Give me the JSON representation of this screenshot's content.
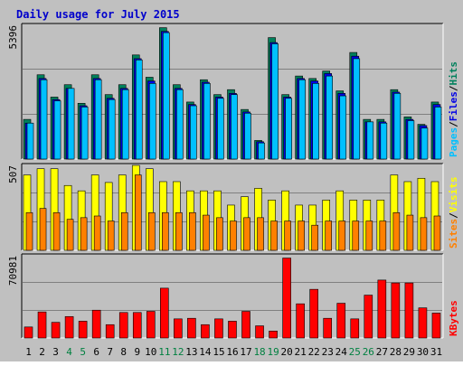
{
  "title": "Daily usage for July 2015",
  "colors": {
    "background": "#c0c0c0",
    "page_bg": "#ffffff",
    "title": "#0000cc",
    "hits_front": "#00805c",
    "hits_back": "#006b49",
    "files": "#0000e6",
    "pages": "#00c0ff",
    "visits": "#ff8000",
    "sites": "#ffff00",
    "kbytes": "#ff0000",
    "weekend_day": "#008040",
    "weekday": "#000000",
    "grid": "#808080"
  },
  "chart_data": [
    {
      "type": "bar",
      "name": "hits-files-pages",
      "ylim": [
        0,
        5396
      ],
      "max_label": "5396",
      "legend": [
        "Pages",
        "Files",
        "Hits"
      ],
      "categories": [
        "1",
        "2",
        "3",
        "4",
        "5",
        "6",
        "7",
        "8",
        "9",
        "10",
        "11",
        "12",
        "13",
        "14",
        "15",
        "16",
        "17",
        "18",
        "19",
        "20",
        "21",
        "22",
        "23",
        "24",
        "25",
        "26",
        "27",
        "28",
        "29",
        "30",
        "31"
      ],
      "series": [
        {
          "name": "Hits",
          "values": [
            1600,
            3400,
            2500,
            3000,
            2250,
            3400,
            2600,
            3000,
            4200,
            3300,
            5300,
            3000,
            2300,
            3200,
            2600,
            2800,
            2000,
            750,
            4900,
            2600,
            3350,
            3250,
            3550,
            2750,
            4300,
            1600,
            1600,
            2800,
            1700,
            1400,
            2300
          ]
        },
        {
          "name": "Files",
          "values": [
            1450,
            3250,
            2400,
            2850,
            2150,
            3250,
            2450,
            2850,
            4050,
            3150,
            5150,
            2850,
            2200,
            3100,
            2500,
            2650,
            1900,
            700,
            4700,
            2500,
            3250,
            3150,
            3450,
            2650,
            4150,
            1500,
            1500,
            2700,
            1600,
            1350,
            2200
          ]
        },
        {
          "name": "Pages",
          "values": [
            1450,
            3200,
            2350,
            2850,
            2100,
            3200,
            2400,
            2800,
            4000,
            3050,
            5100,
            2800,
            2150,
            3050,
            2450,
            2600,
            1850,
            650,
            4650,
            2450,
            3200,
            3050,
            3350,
            2550,
            4050,
            1500,
            1450,
            2650,
            1550,
            1250,
            2100
          ]
        }
      ]
    },
    {
      "type": "bar",
      "name": "visits-sites",
      "ylim": [
        0,
        507
      ],
      "max_label": "507",
      "legend": [
        "Sites",
        "Visits"
      ],
      "categories": [
        "1",
        "2",
        "3",
        "4",
        "5",
        "6",
        "7",
        "8",
        "9",
        "10",
        "11",
        "12",
        "13",
        "14",
        "15",
        "16",
        "17",
        "18",
        "19",
        "20",
        "21",
        "22",
        "23",
        "24",
        "25",
        "26",
        "27",
        "28",
        "29",
        "30",
        "31"
      ],
      "series": [
        {
          "name": "Visits",
          "values": [
            450,
            487,
            487,
            387,
            355,
            450,
            405,
            450,
            507,
            487,
            410,
            410,
            355,
            355,
            355,
            270,
            320,
            370,
            300,
            355,
            270,
            270,
            300,
            355,
            300,
            300,
            300,
            450,
            410,
            430,
            410
          ]
        },
        {
          "name": "Sites",
          "values": [
            225,
            250,
            225,
            185,
            195,
            205,
            175,
            225,
            450,
            225,
            225,
            225,
            225,
            210,
            195,
            175,
            195,
            195,
            175,
            175,
            175,
            150,
            175,
            175,
            175,
            175,
            175,
            225,
            210,
            195,
            205
          ]
        }
      ]
    },
    {
      "type": "bar",
      "name": "kbytes",
      "ylim": [
        0,
        70981
      ],
      "max_label": "70981",
      "legend": [
        "KBytes"
      ],
      "categories": [
        "1",
        "2",
        "3",
        "4",
        "5",
        "6",
        "7",
        "8",
        "9",
        "10",
        "11",
        "12",
        "13",
        "14",
        "15",
        "16",
        "17",
        "18",
        "19",
        "20",
        "21",
        "22",
        "23",
        "24",
        "25",
        "26",
        "27",
        "28",
        "29",
        "30",
        "31"
      ],
      "series": [
        {
          "name": "KBytes",
          "values": [
            9500,
            22500,
            13500,
            18500,
            14500,
            24000,
            11500,
            22000,
            22000,
            23000,
            43000,
            16500,
            17000,
            11500,
            16500,
            14500,
            23000,
            10500,
            6000,
            69000,
            29500,
            42000,
            17000,
            30000,
            16500,
            37000,
            50000,
            47500,
            47500,
            26000,
            21500
          ]
        }
      ]
    }
  ],
  "weekend_days": [
    "4",
    "5",
    "11",
    "12",
    "18",
    "19",
    "25",
    "26"
  ]
}
